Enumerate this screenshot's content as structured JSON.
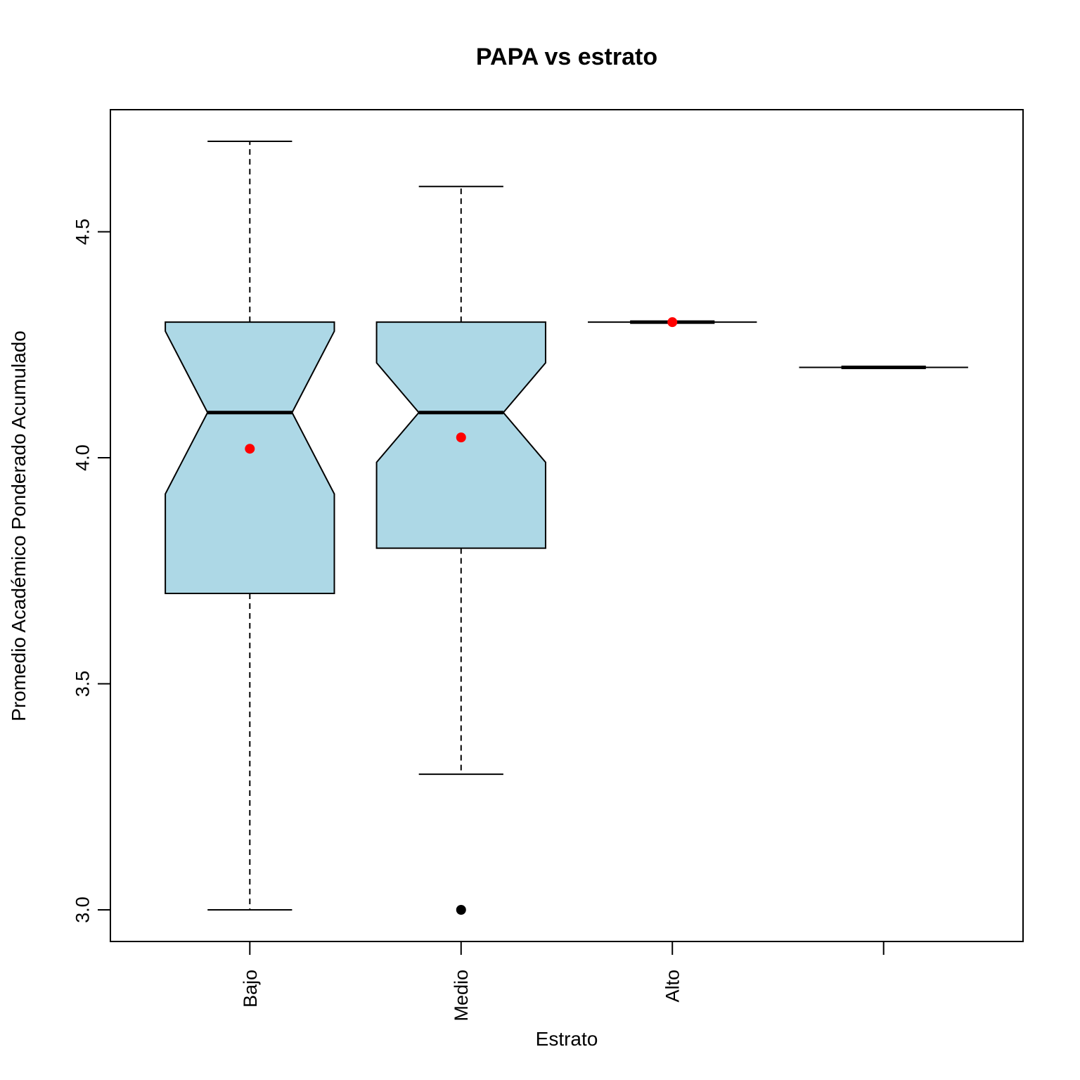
{
  "chart_data": {
    "type": "boxplot",
    "title": "PAPA vs estrato",
    "xlabel": "Estrato",
    "ylabel": "Promedio Académico Ponderado Acumulado",
    "ylim": [
      2.93,
      4.77
    ],
    "yticks": [
      3.0,
      3.5,
      4.0,
      4.5
    ],
    "ytick_labels": [
      "3.0",
      "3.5",
      "4.0",
      "4.5"
    ],
    "grid": false,
    "legend": "none",
    "categories": [
      "Bajo",
      "Medio",
      "Alto",
      ""
    ],
    "boxes": [
      {
        "category": "Bajo",
        "whisker_low": 3.0,
        "q1": 3.7,
        "median": 4.1,
        "q3": 4.3,
        "whisker_high": 4.7,
        "notch_low": 3.92,
        "notch_high": 4.28,
        "mean": 4.02,
        "outliers": []
      },
      {
        "category": "Medio",
        "whisker_low": 3.3,
        "q1": 3.8,
        "median": 4.1,
        "q3": 4.3,
        "whisker_high": 4.6,
        "notch_low": 3.99,
        "notch_high": 4.21,
        "mean": 4.045,
        "outliers": [
          3.0
        ]
      },
      {
        "category": "Alto",
        "whisker_low": 4.3,
        "q1": 4.3,
        "median": 4.3,
        "q3": 4.3,
        "whisker_high": 4.3,
        "notch_low": 4.3,
        "notch_high": 4.3,
        "mean": 4.3,
        "outliers": []
      },
      {
        "category": "",
        "whisker_low": 4.2,
        "q1": 4.2,
        "median": 4.2,
        "q3": 4.2,
        "whisker_high": 4.2,
        "notch_low": 4.2,
        "notch_high": 4.2,
        "mean": null,
        "outliers": []
      }
    ],
    "colors": {
      "box_fill": "#add8e6",
      "mean_point": "#ff0000",
      "outlier_point": "#000000",
      "line": "#000000"
    }
  }
}
